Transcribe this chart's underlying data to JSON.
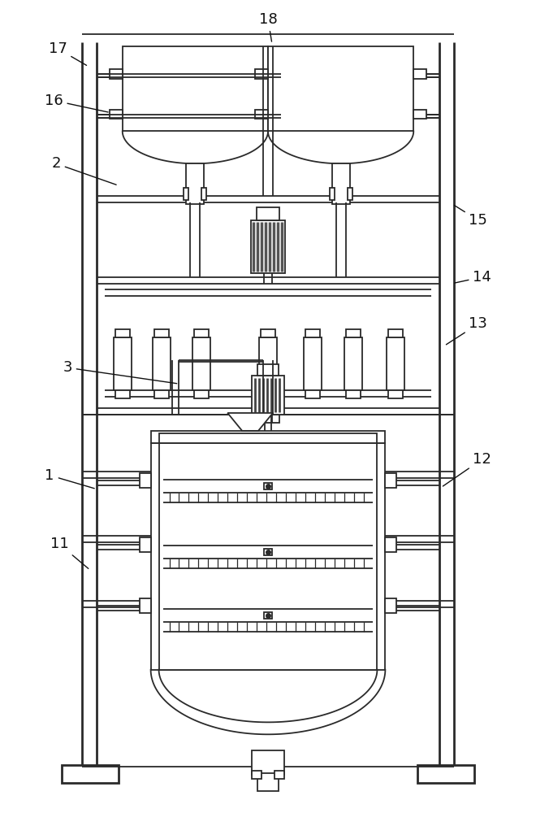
{
  "bg_color": "#ffffff",
  "lc": "#2a2a2a",
  "lw": 1.3,
  "lw2": 2.0,
  "fig_w": 6.6,
  "fig_h": 10.0
}
